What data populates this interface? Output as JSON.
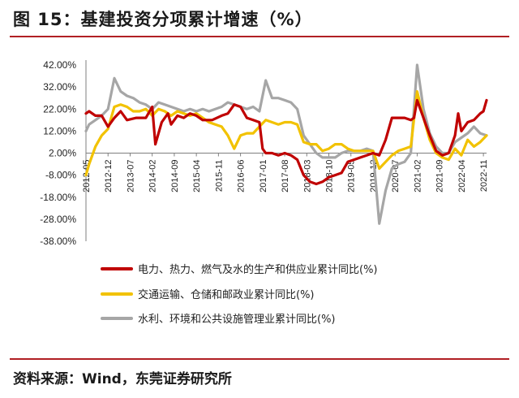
{
  "header": {
    "title": "图 15：基建投资分项累计增速（%）"
  },
  "footer": {
    "source": "资料来源：Wind，东莞证券研究所"
  },
  "colors": {
    "accent": "#b11f24",
    "series_power": "#c00000",
    "series_transport": "#f2c200",
    "series_water": "#a6a6a6"
  },
  "chart_data": {
    "type": "line",
    "xlabel": "",
    "ylabel": "",
    "ylim": [
      -38,
      42
    ],
    "yticks": [
      42,
      32,
      22,
      12,
      2,
      -8,
      -18,
      -28,
      -38
    ],
    "ytick_labels": [
      "42.00%",
      "32.00%",
      "22.00%",
      "12.00%",
      "2.00%",
      "-8.00%",
      "-18.00%",
      "-28.00%",
      "-38.00%"
    ],
    "x_range": [
      "2012-05",
      "2022-12"
    ],
    "xtick_labels": [
      "2012-05",
      "2012-12",
      "2013-07",
      "2014-02",
      "2014-09",
      "2015-04",
      "2015-11",
      "2016-06",
      "2017-01",
      "2017-08",
      "2018-03",
      "2018-10",
      "2019-05",
      "2019-12",
      "2020-07",
      "2021-02",
      "2021-09",
      "2022-04",
      "2022-11"
    ],
    "grid": false,
    "legend_position": "bottom",
    "series": [
      {
        "name": "电力、热力、燃气及水的生产和供应业累计同比(%)",
        "color": "#c00000",
        "points": [
          [
            "2012-05",
            20
          ],
          [
            "2012-06",
            21
          ],
          [
            "2012-08",
            19
          ],
          [
            "2012-10",
            19
          ],
          [
            "2012-12",
            14
          ],
          [
            "2013-02",
            18
          ],
          [
            "2013-04",
            21
          ],
          [
            "2013-06",
            17
          ],
          [
            "2013-09",
            18
          ],
          [
            "2013-12",
            18
          ],
          [
            "2014-02",
            23
          ],
          [
            "2014-03",
            6
          ],
          [
            "2014-05",
            16
          ],
          [
            "2014-07",
            20
          ],
          [
            "2014-08",
            15
          ],
          [
            "2014-10",
            19
          ],
          [
            "2014-12",
            18
          ],
          [
            "2015-02",
            20
          ],
          [
            "2015-04",
            19
          ],
          [
            "2015-06",
            17
          ],
          [
            "2015-09",
            17
          ],
          [
            "2015-12",
            19
          ],
          [
            "2016-02",
            20
          ],
          [
            "2016-04",
            24
          ],
          [
            "2016-06",
            23
          ],
          [
            "2016-08",
            18
          ],
          [
            "2016-10",
            17
          ],
          [
            "2016-12",
            16
          ],
          [
            "2017-01",
            4
          ],
          [
            "2017-02",
            2
          ],
          [
            "2017-04",
            2
          ],
          [
            "2017-06",
            1
          ],
          [
            "2017-08",
            2
          ],
          [
            "2017-10",
            1
          ],
          [
            "2017-12",
            -1
          ],
          [
            "2018-02",
            -8
          ],
          [
            "2018-04",
            -11
          ],
          [
            "2018-06",
            -12
          ],
          [
            "2018-08",
            -11
          ],
          [
            "2018-10",
            -9
          ],
          [
            "2018-12",
            -8
          ],
          [
            "2019-02",
            -7
          ],
          [
            "2019-04",
            -2
          ],
          [
            "2019-06",
            -1
          ],
          [
            "2019-08",
            0
          ],
          [
            "2019-10",
            1
          ],
          [
            "2019-12",
            2
          ],
          [
            "2020-02",
            1
          ],
          [
            "2020-04",
            8
          ],
          [
            "2020-06",
            18
          ],
          [
            "2020-08",
            18
          ],
          [
            "2020-10",
            18
          ],
          [
            "2020-12",
            17
          ],
          [
            "2021-01",
            18
          ],
          [
            "2021-02",
            26
          ],
          [
            "2021-04",
            18
          ],
          [
            "2021-06",
            10
          ],
          [
            "2021-08",
            3
          ],
          [
            "2021-10",
            1
          ],
          [
            "2021-12",
            2
          ],
          [
            "2022-02",
            10
          ],
          [
            "2022-03",
            20
          ],
          [
            "2022-04",
            12
          ],
          [
            "2022-06",
            16
          ],
          [
            "2022-08",
            17
          ],
          [
            "2022-10",
            20
          ],
          [
            "2022-11",
            21
          ],
          [
            "2022-12",
            26
          ]
        ]
      },
      {
        "name": "交通运输、仓储和邮政业累计同比(%)",
        "color": "#f2c200",
        "points": [
          [
            "2012-05",
            -8
          ],
          [
            "2012-06",
            -3
          ],
          [
            "2012-08",
            5
          ],
          [
            "2012-10",
            10
          ],
          [
            "2012-12",
            13
          ],
          [
            "2013-02",
            23
          ],
          [
            "2013-04",
            24
          ],
          [
            "2013-06",
            23
          ],
          [
            "2013-08",
            21
          ],
          [
            "2013-10",
            21
          ],
          [
            "2013-12",
            22
          ],
          [
            "2014-02",
            19
          ],
          [
            "2014-04",
            22
          ],
          [
            "2014-06",
            21
          ],
          [
            "2014-08",
            19
          ],
          [
            "2014-10",
            21
          ],
          [
            "2014-12",
            20
          ],
          [
            "2015-02",
            19
          ],
          [
            "2015-04",
            20
          ],
          [
            "2015-06",
            18
          ],
          [
            "2015-08",
            16
          ],
          [
            "2015-10",
            15
          ],
          [
            "2015-12",
            14
          ],
          [
            "2016-02",
            10
          ],
          [
            "2016-04",
            4
          ],
          [
            "2016-06",
            10
          ],
          [
            "2016-08",
            11
          ],
          [
            "2016-10",
            11
          ],
          [
            "2016-12",
            14
          ],
          [
            "2017-02",
            17
          ],
          [
            "2017-04",
            16
          ],
          [
            "2017-06",
            15
          ],
          [
            "2017-08",
            16
          ],
          [
            "2017-10",
            16
          ],
          [
            "2017-12",
            15
          ],
          [
            "2018-02",
            7
          ],
          [
            "2018-04",
            6
          ],
          [
            "2018-06",
            6
          ],
          [
            "2018-08",
            3
          ],
          [
            "2018-10",
            4
          ],
          [
            "2018-12",
            6
          ],
          [
            "2019-02",
            6
          ],
          [
            "2019-04",
            4
          ],
          [
            "2019-06",
            3
          ],
          [
            "2019-08",
            3
          ],
          [
            "2019-10",
            3
          ],
          [
            "2019-12",
            3
          ],
          [
            "2020-02",
            -5
          ],
          [
            "2020-04",
            -2
          ],
          [
            "2020-06",
            1
          ],
          [
            "2020-08",
            3
          ],
          [
            "2020-10",
            4
          ],
          [
            "2020-12",
            5
          ],
          [
            "2021-02",
            30
          ],
          [
            "2021-04",
            18
          ],
          [
            "2021-06",
            8
          ],
          [
            "2021-08",
            2
          ],
          [
            "2021-10",
            0
          ],
          [
            "2021-12",
            -1
          ],
          [
            "2022-02",
            4
          ],
          [
            "2022-04",
            1
          ],
          [
            "2022-06",
            8
          ],
          [
            "2022-08",
            5
          ],
          [
            "2022-10",
            7
          ],
          [
            "2022-12",
            10
          ]
        ]
      },
      {
        "name": "水利、环境和公共设施管理业累计同比(%)",
        "color": "#a6a6a6",
        "points": [
          [
            "2012-05",
            12
          ],
          [
            "2012-06",
            15
          ],
          [
            "2012-08",
            17
          ],
          [
            "2012-10",
            19
          ],
          [
            "2012-12",
            22
          ],
          [
            "2013-02",
            36
          ],
          [
            "2013-04",
            30
          ],
          [
            "2013-06",
            28
          ],
          [
            "2013-08",
            27
          ],
          [
            "2013-10",
            25
          ],
          [
            "2013-12",
            24
          ],
          [
            "2014-02",
            22
          ],
          [
            "2014-04",
            25
          ],
          [
            "2014-06",
            24
          ],
          [
            "2014-08",
            23
          ],
          [
            "2014-10",
            22
          ],
          [
            "2014-12",
            21
          ],
          [
            "2015-02",
            22
          ],
          [
            "2015-04",
            21
          ],
          [
            "2015-06",
            22
          ],
          [
            "2015-08",
            21
          ],
          [
            "2015-10",
            22
          ],
          [
            "2015-12",
            23
          ],
          [
            "2016-02",
            25
          ],
          [
            "2016-04",
            24
          ],
          [
            "2016-06",
            23
          ],
          [
            "2016-08",
            22
          ],
          [
            "2016-10",
            23
          ],
          [
            "2016-12",
            21
          ],
          [
            "2017-02",
            35
          ],
          [
            "2017-04",
            27
          ],
          [
            "2017-06",
            27
          ],
          [
            "2017-08",
            26
          ],
          [
            "2017-10",
            25
          ],
          [
            "2017-12",
            22
          ],
          [
            "2018-02",
            10
          ],
          [
            "2018-04",
            6
          ],
          [
            "2018-06",
            2
          ],
          [
            "2018-08",
            0
          ],
          [
            "2018-10",
            0
          ],
          [
            "2018-12",
            0
          ],
          [
            "2019-02",
            2
          ],
          [
            "2019-04",
            3
          ],
          [
            "2019-06",
            3
          ],
          [
            "2019-08",
            3
          ],
          [
            "2019-10",
            4
          ],
          [
            "2019-12",
            3
          ],
          [
            "2020-02",
            -30
          ],
          [
            "2020-04",
            -15
          ],
          [
            "2020-06",
            -5
          ],
          [
            "2020-08",
            -3
          ],
          [
            "2020-10",
            -2
          ],
          [
            "2020-12",
            2
          ],
          [
            "2021-02",
            42
          ],
          [
            "2021-04",
            22
          ],
          [
            "2021-06",
            11
          ],
          [
            "2021-08",
            5
          ],
          [
            "2021-10",
            2
          ],
          [
            "2021-12",
            2
          ],
          [
            "2022-02",
            7
          ],
          [
            "2022-04",
            9
          ],
          [
            "2022-06",
            11
          ],
          [
            "2022-08",
            14
          ],
          [
            "2022-10",
            11
          ],
          [
            "2022-12",
            10
          ]
        ]
      }
    ]
  }
}
